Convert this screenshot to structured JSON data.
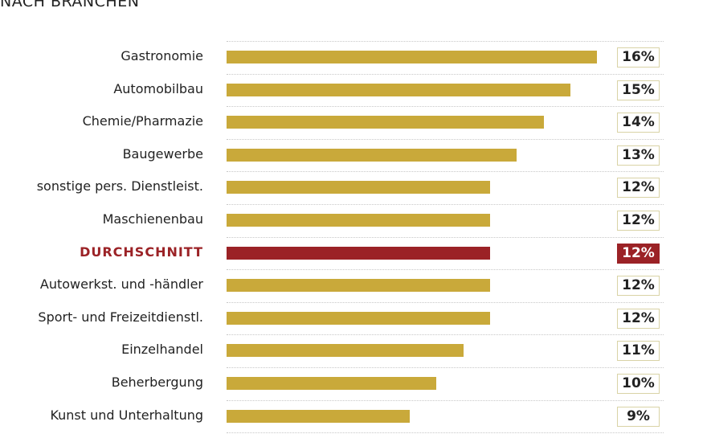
{
  "title": "NACH BRANCHEN",
  "colors": {
    "bar": "#c9a93a",
    "highlight": "#9b2226"
  },
  "chart_data": {
    "type": "bar",
    "orientation": "horizontal",
    "title": "NACH BRANCHEN",
    "xlabel": "",
    "ylabel": "",
    "categories": [
      "Gastronomie",
      "Automobilbau",
      "Chemie/Pharmazie",
      "Baugewerbe",
      "sonstige pers. Dienstleist.",
      "Maschienenbau",
      "DURCHSCHNITT",
      "Autowerkst. und -händler",
      "Sport- und Freizeitdienstl.",
      "Einzelhandel",
      "Beherbergung",
      "Kunst und Unterhaltung"
    ],
    "values": [
      16,
      15,
      14,
      13,
      12,
      12,
      12,
      12,
      12,
      11,
      10,
      9
    ],
    "value_labels": [
      "16%",
      "15%",
      "14%",
      "13%",
      "12%",
      "12%",
      "12%",
      "12%",
      "12%",
      "11%",
      "10%",
      "9%"
    ],
    "highlight": "DURCHSCHNITT",
    "unit": "%"
  }
}
